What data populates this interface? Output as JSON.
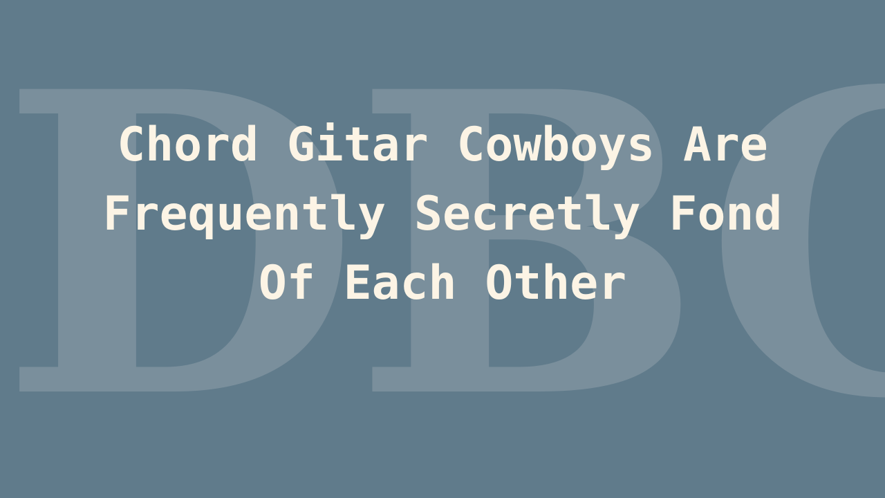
{
  "watermark": {
    "text": "DBC"
  },
  "title": {
    "text": "Chord Gitar Cowboys Are Frequently Secretly Fond Of Each Other"
  },
  "colors": {
    "background": "#607b8b",
    "watermark": "#7a8f9c",
    "title": "#fcf4e5"
  }
}
